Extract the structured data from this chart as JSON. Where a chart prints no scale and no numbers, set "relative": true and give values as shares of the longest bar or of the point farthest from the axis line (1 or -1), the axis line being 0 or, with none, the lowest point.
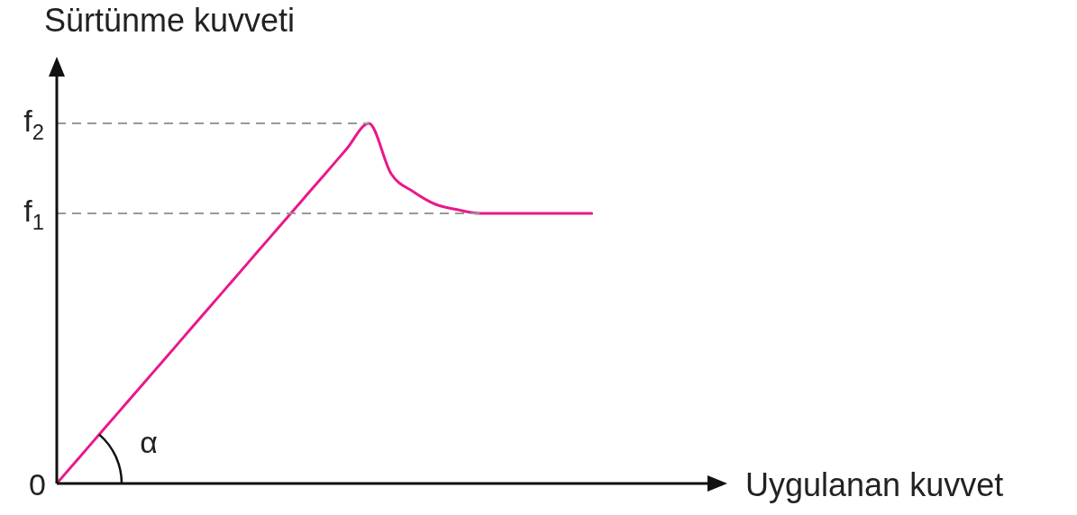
{
  "chart_data": {
    "type": "line",
    "xlabel": "Uygulanan kuvvet",
    "ylabel": "Sürtünme kuvveti",
    "relative": true,
    "legend": false,
    "marker": "none",
    "line_style": "solid",
    "categories": [
      null,
      null,
      null,
      null,
      null,
      null,
      null,
      null,
      null,
      null,
      null,
      null,
      null,
      null,
      null,
      null,
      null,
      null,
      null,
      null,
      null,
      null,
      null,
      null,
      null,
      null,
      null,
      null,
      null,
      null,
      null
    ],
    "series": [
      {
        "color": "#e8198b",
        "values": [
          0,
          0.0714,
          0.1429,
          0.2143,
          0.2857,
          0.3571,
          0.4286,
          0.5,
          0.5714,
          0.6429,
          0.7143,
          0.7857,
          0.8571,
          0.9286,
          1,
          0.86,
          0.81,
          0.775,
          0.76,
          0.75,
          0.75,
          0.75,
          0.75,
          0.75,
          0.75,
          null,
          null,
          null,
          null,
          null,
          null
        ]
      }
    ],
    "ref_lines": [
      {
        "axis": "y",
        "value": 1,
        "label": "f$_{2}$",
        "color": "#999999",
        "line_style": "dashed"
      },
      {
        "axis": "y",
        "value": 0.75,
        "label": "f$_{1}$",
        "color": "#999999",
        "line_style": "dashed"
      }
    ],
    "annotations": [
      "0",
      "α"
    ]
  }
}
